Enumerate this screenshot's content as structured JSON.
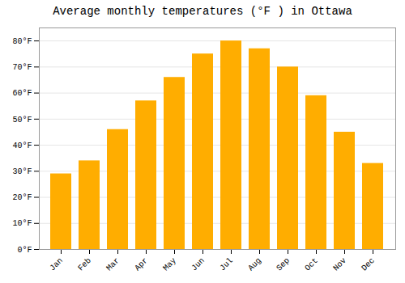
{
  "chart_data": {
    "type": "bar",
    "title": "Average monthly temperatures (°F ) in Ottawa",
    "categories": [
      "Jan",
      "Feb",
      "Mar",
      "Apr",
      "May",
      "Jun",
      "Jul",
      "Aug",
      "Sep",
      "Oct",
      "Nov",
      "Dec"
    ],
    "values": [
      29,
      34,
      46,
      57,
      66,
      75,
      80,
      77,
      70,
      59,
      45,
      33
    ],
    "color": "#FFAD00",
    "ylim": [
      0,
      85
    ],
    "yticks": [
      {
        "value": 0,
        "label": "0°F"
      },
      {
        "value": 10,
        "label": "10°F"
      },
      {
        "value": 20,
        "label": "20°F"
      },
      {
        "value": 30,
        "label": "30°F"
      },
      {
        "value": 40,
        "label": "40°F"
      },
      {
        "value": 50,
        "label": "50°F"
      },
      {
        "value": 60,
        "label": "60°F"
      },
      {
        "value": 70,
        "label": "70°F"
      },
      {
        "value": 80,
        "label": "80°F"
      }
    ],
    "grid": true
  }
}
